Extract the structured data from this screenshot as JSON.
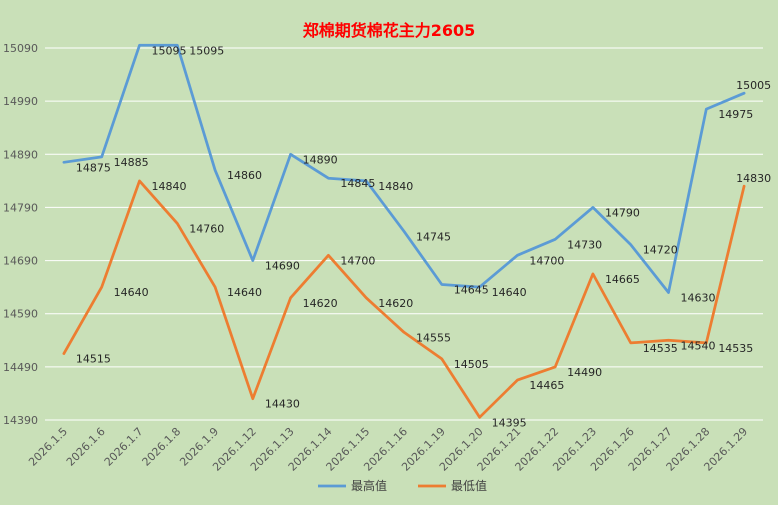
{
  "chart_data": {
    "type": "line",
    "title": "郑棉期货棉花主力2605",
    "categories": [
      "2026.1.5",
      "2026.1.6",
      "2026.1.7",
      "2026.1.8",
      "2026.1.9",
      "2026.1.12",
      "2026.1.13",
      "2026.1.14",
      "2026.1.15",
      "2026.1.16",
      "2026.1.19",
      "2026.1.20",
      "2026.1.21",
      "2026.1.22",
      "2026.1.23",
      "2026.1.26",
      "2026.1.27",
      "2026.1.28",
      "2026.1.29"
    ],
    "series": [
      {
        "name": "最高值",
        "color": "#5b9bd5",
        "values": [
          14875,
          14885,
          15095,
          15095,
          14860,
          14690,
          14890,
          14845,
          14840,
          14745,
          14645,
          14640,
          14700,
          14730,
          14790,
          14720,
          14630,
          14975,
          15005
        ]
      },
      {
        "name": "最低值",
        "color": "#ed7d31",
        "values": [
          14515,
          14640,
          14840,
          14760,
          14640,
          14430,
          14620,
          14700,
          14620,
          14555,
          14505,
          14395,
          14465,
          14490,
          14665,
          14535,
          14540,
          14535,
          14830
        ]
      }
    ],
    "yticks": [
      14390,
      14490,
      14590,
      14690,
      14790,
      14890,
      14990,
      15090
    ],
    "ylim": [
      14390,
      15090
    ],
    "grid": true,
    "legend_position": "bottom",
    "title_color": "#ff0000"
  }
}
